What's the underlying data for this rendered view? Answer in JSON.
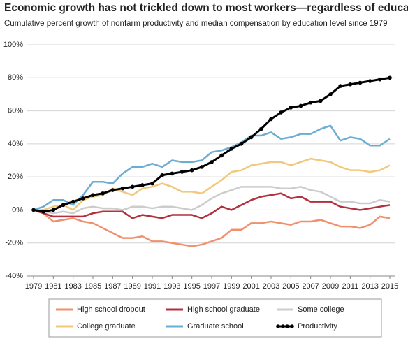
{
  "chart_data": {
    "type": "line",
    "title": "Economic growth has not trickled down to most workers—regardless of education",
    "subtitle": "Cumulative percent growth of nonfarm productivity and median compensation by education level since 1979",
    "x": [
      1979,
      1980,
      1981,
      1982,
      1983,
      1984,
      1985,
      1986,
      1987,
      1988,
      1989,
      1990,
      1991,
      1992,
      1993,
      1994,
      1995,
      1996,
      1997,
      1998,
      1999,
      2000,
      2001,
      2002,
      2003,
      2004,
      2005,
      2006,
      2007,
      2008,
      2009,
      2010,
      2011,
      2012,
      2013,
      2014,
      2015
    ],
    "series": [
      {
        "name": "High school dropout",
        "color": "#f0906c",
        "values": [
          0,
          -2,
          -7,
          -6,
          -5,
          -7,
          -8,
          -11,
          -14,
          -17,
          -17,
          -16,
          -19,
          -19,
          -20,
          -21,
          -22,
          -21,
          -19,
          -17,
          -12,
          -12,
          -8,
          -8,
          -7,
          -8,
          -9,
          -7,
          -7,
          -6,
          -8,
          -10,
          -10,
          -11,
          -9,
          -4,
          -5
        ]
      },
      {
        "name": "High school graduate",
        "color": "#b3303f",
        "values": [
          0,
          -2,
          -4,
          -4,
          -4,
          -4,
          -2,
          -1,
          -1,
          -1,
          -5,
          -3,
          -4,
          -5,
          -3,
          -3,
          -3,
          -5,
          -2,
          2,
          0,
          3,
          6,
          8,
          9,
          10,
          7,
          8,
          5,
          5,
          5,
          2,
          1,
          0,
          1,
          2,
          3
        ]
      },
      {
        "name": "Some college",
        "color": "#cccccc",
        "values": [
          0,
          -1,
          -2,
          -1,
          -2,
          1,
          2,
          1,
          1,
          0,
          2,
          2,
          1,
          2,
          2,
          1,
          0,
          3,
          7,
          10,
          12,
          14,
          14,
          14,
          14,
          13,
          13,
          14,
          12,
          11,
          8,
          5,
          5,
          4,
          4,
          6,
          5
        ]
      },
      {
        "name": "College graduate",
        "color": "#f2c87c",
        "values": [
          0,
          0,
          2,
          3,
          0,
          6,
          8,
          9,
          13,
          11,
          9,
          13,
          14,
          16,
          14,
          11,
          11,
          10,
          14,
          18,
          23,
          24,
          27,
          28,
          29,
          29,
          27,
          29,
          31,
          30,
          29,
          26,
          24,
          24,
          23,
          24,
          27
        ]
      },
      {
        "name": "Graduate school",
        "color": "#6badd3",
        "values": [
          0,
          2,
          6,
          6,
          3,
          9,
          17,
          17,
          16,
          22,
          26,
          26,
          28,
          26,
          30,
          29,
          29,
          30,
          35,
          36,
          38,
          41,
          45,
          45,
          47,
          43,
          44,
          46,
          46,
          49,
          51,
          42,
          44,
          43,
          39,
          39,
          43
        ]
      },
      {
        "name": "Productivity",
        "color": "#000000",
        "values": [
          0,
          -1,
          0,
          3,
          5,
          7,
          9,
          10,
          12,
          13,
          14,
          15,
          16,
          21,
          22,
          23,
          24,
          26,
          29,
          33,
          37,
          40,
          44,
          49,
          55,
          59,
          62,
          63,
          65,
          66,
          70,
          75,
          76,
          77,
          78,
          79,
          80
        ]
      }
    ],
    "xlim": [
      1979,
      2015
    ],
    "xticks": [
      1979,
      1981,
      1983,
      1985,
      1987,
      1989,
      1991,
      1993,
      1995,
      1997,
      1999,
      2001,
      2003,
      2005,
      2007,
      2009,
      2011,
      2013,
      2015
    ],
    "ylim": [
      -40,
      100
    ],
    "yticks": [
      {
        "value": -40,
        "label": "-40%"
      },
      {
        "value": -20,
        "label": "-20%"
      },
      {
        "value": 0,
        "label": "0%"
      },
      {
        "value": 20,
        "label": "20%"
      },
      {
        "value": 40,
        "label": "40%"
      },
      {
        "value": 60,
        "label": "60%"
      },
      {
        "value": 80,
        "label": "80%"
      },
      {
        "value": 100,
        "label": "100%"
      }
    ],
    "grid": true
  }
}
